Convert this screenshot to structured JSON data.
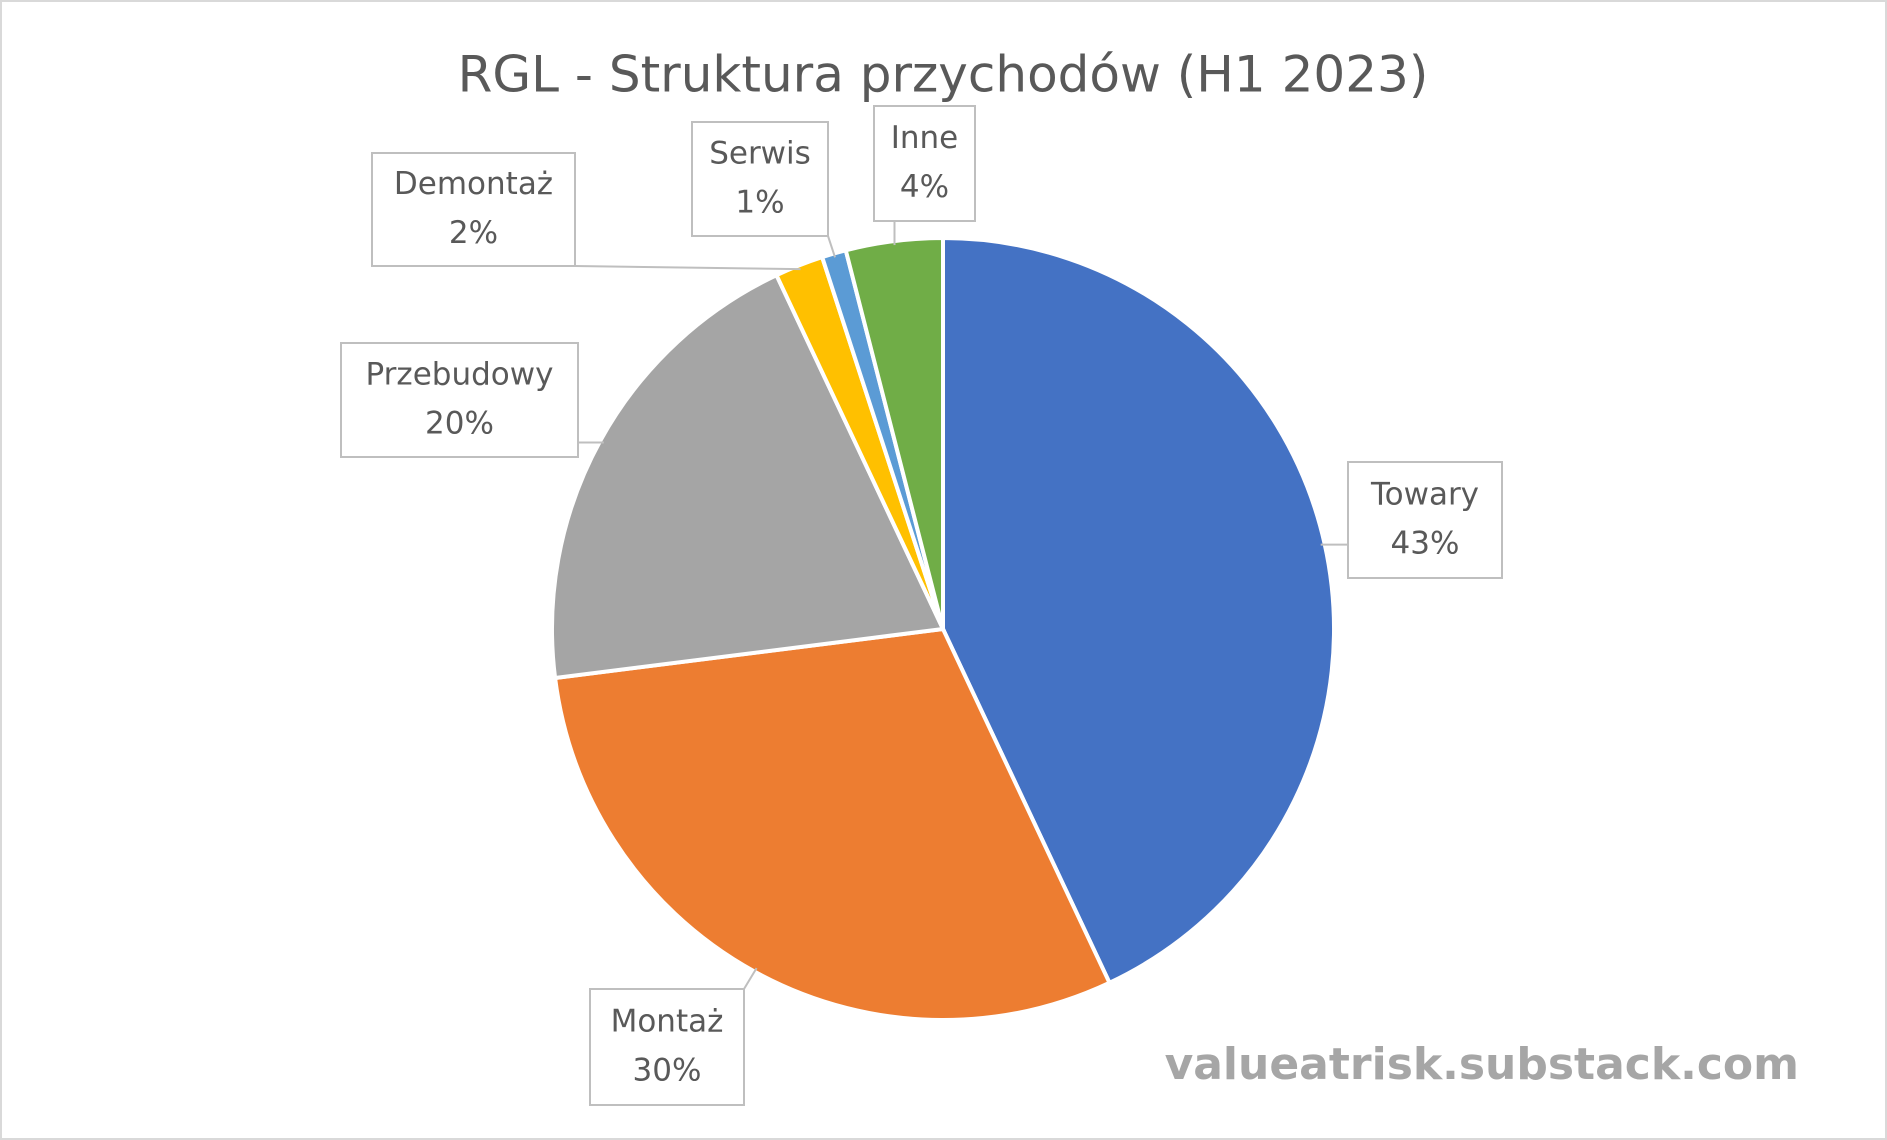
{
  "chart_data": {
    "type": "pie",
    "title": "RGL - Struktura przychodów (H1 2023)",
    "categories": [
      "Towary",
      "Montaż",
      "Przebudowy",
      "Demontaż",
      "Serwis",
      "Inne"
    ],
    "values": [
      43,
      30,
      20,
      2,
      1,
      4
    ],
    "value_labels": [
      "43%",
      "30%",
      "20%",
      "2%",
      "1%",
      "4%"
    ],
    "colors": [
      "#4472c4",
      "#ed7d31",
      "#a5a5a5",
      "#ffc000",
      "#5b9bd5",
      "#70ad47"
    ],
    "watermark": "valueatrisk.substack.com"
  }
}
